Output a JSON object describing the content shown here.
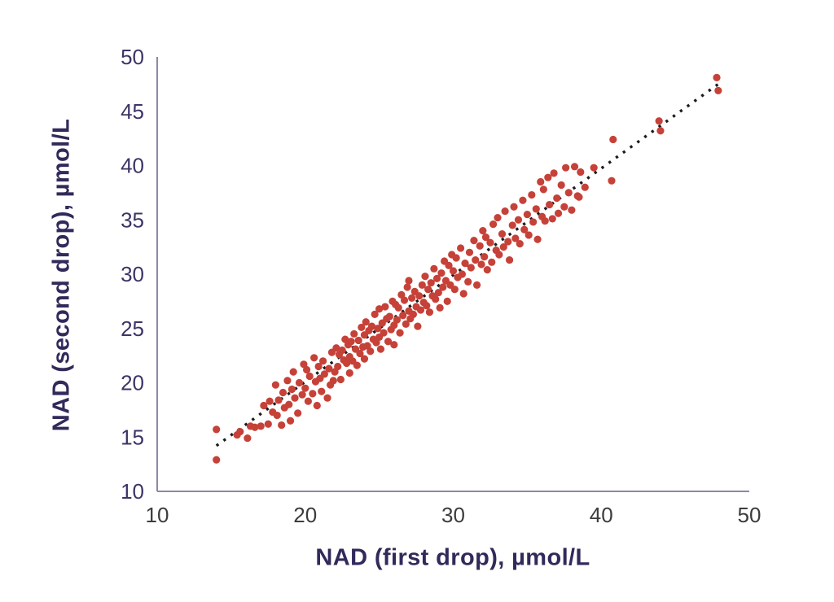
{
  "chart_data": {
    "type": "scatter",
    "title": "",
    "xlabel": "NAD (first drop), µmol/L",
    "ylabel": "NAD (second drop), µmol/L",
    "xlim": [
      10,
      50
    ],
    "ylim": [
      10,
      50
    ],
    "xticks": [
      10,
      20,
      30,
      40,
      50
    ],
    "yticks": [
      10,
      15,
      20,
      25,
      30,
      35,
      40,
      45,
      50
    ],
    "grid": false,
    "legend": "none",
    "series": [
      {
        "name": "paired-nad-measurements",
        "marker": "circle",
        "color": "#c64138",
        "points": [
          [
            14.0,
            12.9
          ],
          [
            14.0,
            15.7
          ],
          [
            15.4,
            15.2
          ],
          [
            15.6,
            15.5
          ],
          [
            16.1,
            14.9
          ],
          [
            16.3,
            16.0
          ],
          [
            16.6,
            15.9
          ],
          [
            17.0,
            16.0
          ],
          [
            17.2,
            17.9
          ],
          [
            17.5,
            16.2
          ],
          [
            17.6,
            18.3
          ],
          [
            17.8,
            17.3
          ],
          [
            18.0,
            19.8
          ],
          [
            18.1,
            17.0
          ],
          [
            18.2,
            18.4
          ],
          [
            18.4,
            16.1
          ],
          [
            18.5,
            19.1
          ],
          [
            18.6,
            17.7
          ],
          [
            18.8,
            20.2
          ],
          [
            18.9,
            18.0
          ],
          [
            19.0,
            16.5
          ],
          [
            19.1,
            19.4
          ],
          [
            19.2,
            21.0
          ],
          [
            19.3,
            18.6
          ],
          [
            19.5,
            17.2
          ],
          [
            19.6,
            20.0
          ],
          [
            19.8,
            18.9
          ],
          [
            19.9,
            21.7
          ],
          [
            20.0,
            19.5
          ],
          [
            20.1,
            21.2
          ],
          [
            20.2,
            18.3
          ],
          [
            20.3,
            20.6
          ],
          [
            20.5,
            19.0
          ],
          [
            20.6,
            22.3
          ],
          [
            20.7,
            20.1
          ],
          [
            20.8,
            17.9
          ],
          [
            20.9,
            21.5
          ],
          [
            21.0,
            20.4
          ],
          [
            21.1,
            19.2
          ],
          [
            21.2,
            22.0
          ],
          [
            21.3,
            20.8
          ],
          [
            21.5,
            18.6
          ],
          [
            21.6,
            21.3
          ],
          [
            21.7,
            19.8
          ],
          [
            21.8,
            22.8
          ],
          [
            21.9,
            20.2
          ],
          [
            22.0,
            21.0
          ],
          [
            22.1,
            23.2
          ],
          [
            22.2,
            21.5
          ],
          [
            22.3,
            22.6
          ],
          [
            22.4,
            20.3
          ],
          [
            22.5,
            23.0
          ],
          [
            22.6,
            22.1
          ],
          [
            22.7,
            24.0
          ],
          [
            22.8,
            21.8
          ],
          [
            22.9,
            23.5
          ],
          [
            23.0,
            22.4
          ],
          [
            23.0,
            20.9
          ],
          [
            23.1,
            23.8
          ],
          [
            23.2,
            22.0
          ],
          [
            23.3,
            24.5
          ],
          [
            23.4,
            23.1
          ],
          [
            23.5,
            21.6
          ],
          [
            23.6,
            23.9
          ],
          [
            23.7,
            22.7
          ],
          [
            23.8,
            25.1
          ],
          [
            23.9,
            23.3
          ],
          [
            24.0,
            22.2
          ],
          [
            24.0,
            24.4
          ],
          [
            24.1,
            25.6
          ],
          [
            24.2,
            23.4
          ],
          [
            24.3,
            24.8
          ],
          [
            24.4,
            22.9
          ],
          [
            24.5,
            25.2
          ],
          [
            24.6,
            24.0
          ],
          [
            24.7,
            26.3
          ],
          [
            24.8,
            23.7
          ],
          [
            24.9,
            25.0
          ],
          [
            25.0,
            24.2
          ],
          [
            25.0,
            26.8
          ],
          [
            25.1,
            23.1
          ],
          [
            25.2,
            25.5
          ],
          [
            25.3,
            24.6
          ],
          [
            25.4,
            27.0
          ],
          [
            25.5,
            25.9
          ],
          [
            25.6,
            23.8
          ],
          [
            25.7,
            26.1
          ],
          [
            25.8,
            24.9
          ],
          [
            25.9,
            27.5
          ],
          [
            26.0,
            25.3
          ],
          [
            26.0,
            23.5
          ],
          [
            26.1,
            27.2
          ],
          [
            26.2,
            25.8
          ],
          [
            26.3,
            26.9
          ],
          [
            26.4,
            24.6
          ],
          [
            26.5,
            28.1
          ],
          [
            26.6,
            26.2
          ],
          [
            26.7,
            27.6
          ],
          [
            26.8,
            25.4
          ],
          [
            26.9,
            28.8
          ],
          [
            27.0,
            26.6
          ],
          [
            27.0,
            29.4
          ],
          [
            27.1,
            25.9
          ],
          [
            27.2,
            27.8
          ],
          [
            27.3,
            26.3
          ],
          [
            27.4,
            28.4
          ],
          [
            27.5,
            27.0
          ],
          [
            27.6,
            25.2
          ],
          [
            27.7,
            28.0
          ],
          [
            27.8,
            26.7
          ],
          [
            27.9,
            29.0
          ],
          [
            28.0,
            27.4
          ],
          [
            28.1,
            29.8
          ],
          [
            28.2,
            27.1
          ],
          [
            28.3,
            28.6
          ],
          [
            28.4,
            26.5
          ],
          [
            28.5,
            29.2
          ],
          [
            28.6,
            28.0
          ],
          [
            28.7,
            30.5
          ],
          [
            28.8,
            27.7
          ],
          [
            28.9,
            29.6
          ],
          [
            29.0,
            28.3
          ],
          [
            29.1,
            26.9
          ],
          [
            29.2,
            30.1
          ],
          [
            29.3,
            28.8
          ],
          [
            29.4,
            31.2
          ],
          [
            29.5,
            29.4
          ],
          [
            29.6,
            27.5
          ],
          [
            29.7,
            30.8
          ],
          [
            29.8,
            29.0
          ],
          [
            29.9,
            31.8
          ],
          [
            30.0,
            30.3
          ],
          [
            30.1,
            28.6
          ],
          [
            30.2,
            31.5
          ],
          [
            30.3,
            29.7
          ],
          [
            30.5,
            32.4
          ],
          [
            30.6,
            30.0
          ],
          [
            30.7,
            28.2
          ],
          [
            30.8,
            31.0
          ],
          [
            31.0,
            29.3
          ],
          [
            31.1,
            32.0
          ],
          [
            31.2,
            30.6
          ],
          [
            31.4,
            33.1
          ],
          [
            31.5,
            31.3
          ],
          [
            31.6,
            29.0
          ],
          [
            31.8,
            32.6
          ],
          [
            31.9,
            30.9
          ],
          [
            32.0,
            34.0
          ],
          [
            32.1,
            31.6
          ],
          [
            32.2,
            33.4
          ],
          [
            32.3,
            30.4
          ],
          [
            32.5,
            32.9
          ],
          [
            32.6,
            31.1
          ],
          [
            32.7,
            34.6
          ],
          [
            32.9,
            32.2
          ],
          [
            33.0,
            35.2
          ],
          [
            33.1,
            31.8
          ],
          [
            33.3,
            33.7
          ],
          [
            33.4,
            32.5
          ],
          [
            33.5,
            35.8
          ],
          [
            33.7,
            33.0
          ],
          [
            33.8,
            31.3
          ],
          [
            34.0,
            34.5
          ],
          [
            34.1,
            36.2
          ],
          [
            34.2,
            33.3
          ],
          [
            34.4,
            35.0
          ],
          [
            34.5,
            32.8
          ],
          [
            34.7,
            36.8
          ],
          [
            34.8,
            34.1
          ],
          [
            35.0,
            35.5
          ],
          [
            35.1,
            33.6
          ],
          [
            35.3,
            37.3
          ],
          [
            35.4,
            34.8
          ],
          [
            35.6,
            36.0
          ],
          [
            35.7,
            33.2
          ],
          [
            35.9,
            38.5
          ],
          [
            36.0,
            35.3
          ],
          [
            36.1,
            37.8
          ],
          [
            36.2,
            34.9
          ],
          [
            36.4,
            38.9
          ],
          [
            36.5,
            36.4
          ],
          [
            36.7,
            35.1
          ],
          [
            36.8,
            39.3
          ],
          [
            37.0,
            37.0
          ],
          [
            37.1,
            35.6
          ],
          [
            37.3,
            38.2
          ],
          [
            37.5,
            36.2
          ],
          [
            37.6,
            39.8
          ],
          [
            37.8,
            37.5
          ],
          [
            38.0,
            35.9
          ],
          [
            38.2,
            39.9
          ],
          [
            38.4,
            37.2
          ],
          [
            38.5,
            37.1
          ],
          [
            38.6,
            39.4
          ],
          [
            38.9,
            38.0
          ],
          [
            39.5,
            39.8
          ],
          [
            40.7,
            38.6
          ],
          [
            40.8,
            42.4
          ],
          [
            43.9,
            44.1
          ],
          [
            44.0,
            43.2
          ],
          [
            47.8,
            48.1
          ],
          [
            47.9,
            46.9
          ]
        ]
      }
    ],
    "trendline": {
      "style": "dotted",
      "color": "#1c1c1c",
      "x1": 14.0,
      "y1": 14.2,
      "x2": 47.9,
      "y2": 47.5
    }
  },
  "style": {
    "background": "#ffffff",
    "axis_line_color": "#8e87a7",
    "x_tick_color": "#3c3c3c",
    "y_tick_color": "#3b3566",
    "axis_title_color": "#312a5a",
    "point_color": "#c64138",
    "trend_color": "#1c1c1c"
  }
}
